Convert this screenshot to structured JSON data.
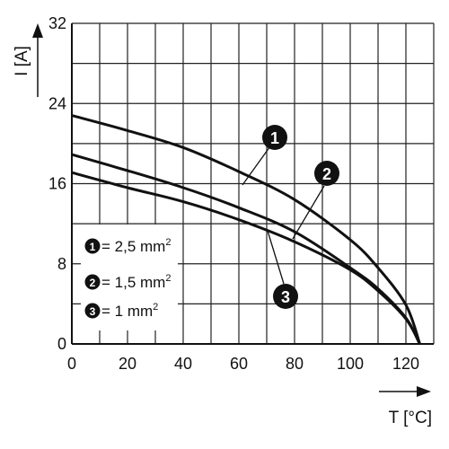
{
  "chart_data": {
    "type": "line",
    "xlabel": "T [°C]",
    "ylabel": "I [A]",
    "xlim": [
      0,
      130
    ],
    "ylim": [
      0,
      32
    ],
    "x_ticks": [
      "0",
      "20",
      "40",
      "60",
      "80",
      "100",
      "120"
    ],
    "y_ticks": [
      "0",
      "8",
      "16",
      "24",
      "32"
    ],
    "grid": true,
    "legend_position": "lower-left",
    "series": [
      {
        "name": "2,5 mm²",
        "marker": "1",
        "x": [
          0,
          20,
          40,
          60,
          80,
          100,
          110,
          120,
          125
        ],
        "y": [
          22.8,
          21.3,
          19.6,
          17.2,
          14.4,
          10.4,
          7.6,
          3.9,
          0
        ]
      },
      {
        "name": "1,5 mm²",
        "marker": "2",
        "x": [
          0,
          20,
          40,
          60,
          80,
          100,
          110,
          120,
          125
        ],
        "y": [
          18.9,
          17.3,
          15.6,
          13.6,
          11.2,
          7.6,
          5.5,
          2.6,
          0
        ]
      },
      {
        "name": "1 mm²",
        "marker": "3",
        "x": [
          0,
          20,
          40,
          60,
          80,
          100,
          110,
          120,
          125
        ],
        "y": [
          17.1,
          15.6,
          14.2,
          12.4,
          10.2,
          7.4,
          5.3,
          2.5,
          0
        ]
      }
    ],
    "legend": [
      {
        "marker": "1",
        "text": "= 2,5 mm",
        "sup": "2"
      },
      {
        "marker": "2",
        "text": "= 1,5 mm",
        "sup": "2"
      },
      {
        "marker": "3",
        "text": "= 1 mm",
        "sup": "2"
      }
    ]
  }
}
